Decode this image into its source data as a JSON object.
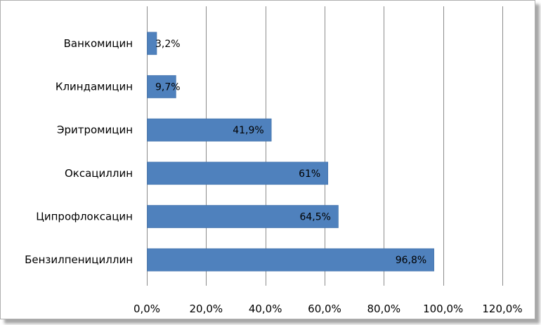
{
  "chart_data": {
    "type": "bar",
    "orientation": "horizontal",
    "categories": [
      "Ванкомицин",
      "Клиндамицин",
      "Эритромицин",
      "Оксациллин",
      "Ципрофлоксацин",
      "Бензилпенициллин"
    ],
    "values": [
      3.2,
      9.7,
      41.9,
      61,
      64.5,
      96.8
    ],
    "data_labels": [
      "3,2%",
      "9,7%",
      "41,9%",
      "61%",
      "64,5%",
      "96,8%"
    ],
    "x_ticks": [
      0,
      20,
      40,
      60,
      80,
      100,
      120
    ],
    "x_tick_labels": [
      "0,0%",
      "20,0%",
      "40,0%",
      "60,0%",
      "80,0%",
      "100,0%",
      "120,0%"
    ],
    "xlim": [
      0,
      120
    ],
    "title": "",
    "xlabel": "",
    "ylabel": "",
    "grid": "vertical",
    "legend": "none",
    "bar_color": "#4f81bd"
  }
}
